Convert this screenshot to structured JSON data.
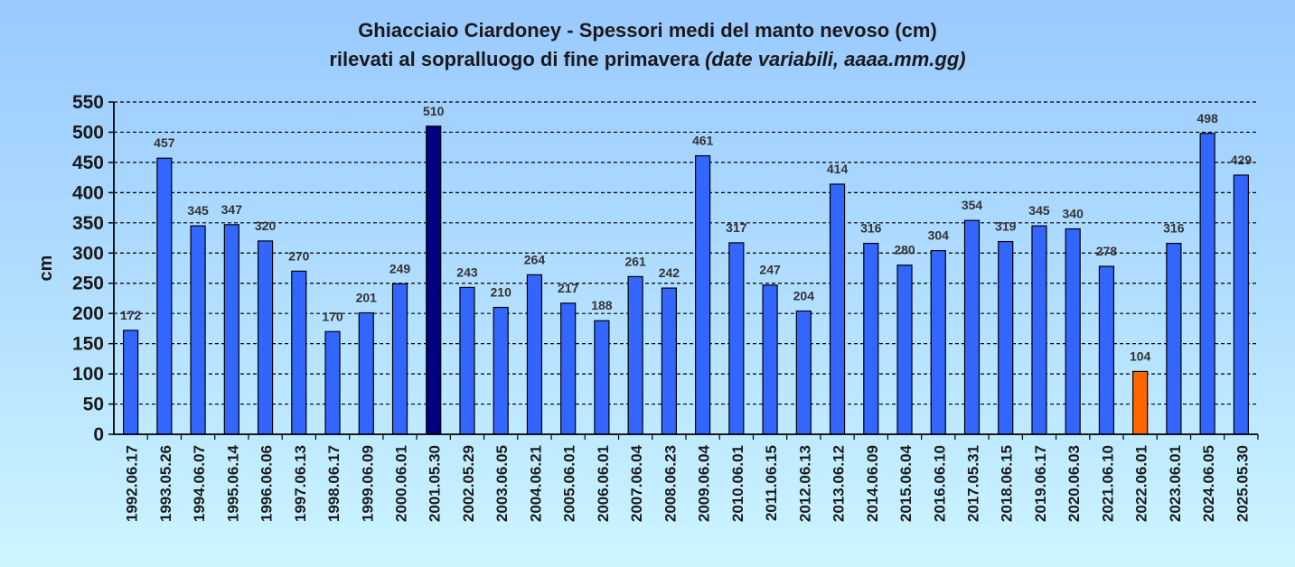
{
  "chart_data": {
    "type": "bar",
    "title": "Ghiacciaio Ciardoney - Spessori medi del manto nevoso (cm)",
    "subtitle_prefix": "rilevati al sopralluogo di fine primavera",
    "subtitle_italic": "(date variabili, aaaa.mm.gg)",
    "ylabel": "cm",
    "ylim": [
      0,
      550
    ],
    "yticks": [
      "0",
      "50",
      "100",
      "150",
      "200",
      "250",
      "300",
      "350",
      "400",
      "450",
      "500",
      "550"
    ],
    "grid": true,
    "categories": [
      "1992.06.17",
      "1993.05.26",
      "1994.06.07",
      "1995.06.14",
      "1996.06.06",
      "1997.06.13",
      "1998.06.17",
      "1999.06.09",
      "2000.06.01",
      "2001.05.30",
      "2002.05.29",
      "2003.06.05",
      "2004.06.21",
      "2005.06.01",
      "2006.06.01",
      "2007.06.04",
      "2008.06.23",
      "2009.06.04",
      "2010.06.01",
      "2011.06.15",
      "2012.06.13",
      "2013.06.12",
      "2014.06.09",
      "2015.06.04",
      "2016.06.10",
      "2017.05.31",
      "2018.06.15",
      "2019.06.17",
      "2020.06.03",
      "2021.06.10",
      "2022.06.01",
      "2023.06.01",
      "2024.06.05",
      "2025.05.30"
    ],
    "values": [
      172,
      457,
      345,
      347,
      320,
      270,
      170,
      201,
      249,
      510,
      243,
      210,
      264,
      217,
      188,
      261,
      242,
      461,
      317,
      247,
      204,
      414,
      316,
      280,
      304,
      354,
      319,
      345,
      340,
      278,
      104,
      316,
      498,
      429
    ],
    "bar_color": "#3366ff",
    "highlight_max_color": "#000080",
    "highlight_min_color": "#ff6600"
  }
}
